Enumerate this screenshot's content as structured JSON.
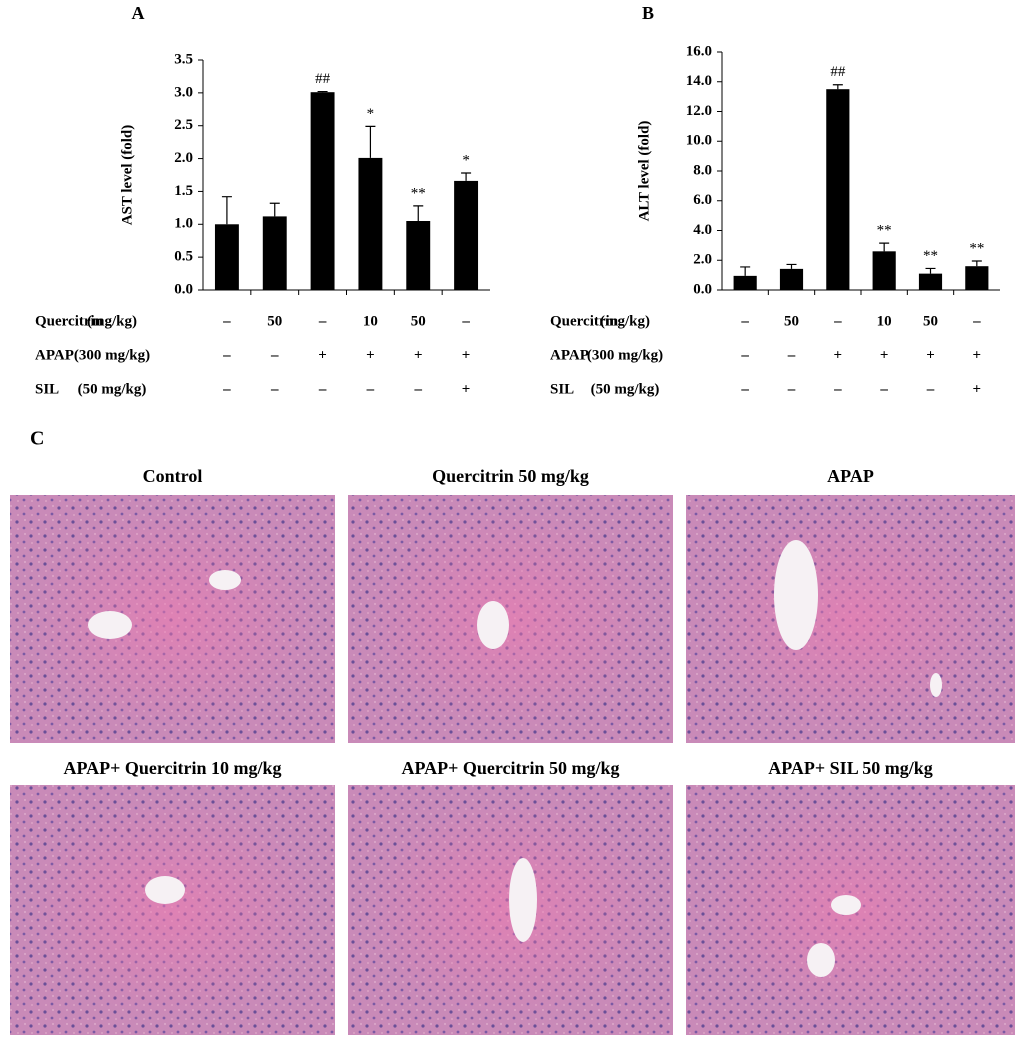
{
  "chart_data": [
    {
      "type": "bar",
      "title": "A",
      "y_label": "AST level  (fold)",
      "categories": [
        null,
        null,
        null,
        null,
        null,
        null
      ],
      "values": [
        1.0,
        1.12,
        3.01,
        2.01,
        1.05,
        1.66
      ],
      "errors": [
        0.42,
        0.2,
        0.01,
        0.48,
        0.23,
        0.12
      ],
      "value_annotations": [
        null,
        null,
        "##",
        "*",
        "**",
        "*"
      ],
      "color": "#000000",
      "ylim": [
        0,
        3.5
      ],
      "yticks": [
        {
          "value": 0,
          "label": "0.0"
        },
        0.5,
        {
          "value": 1,
          "label": "1.0"
        },
        1.5,
        {
          "value": 2,
          "label": "2.0"
        },
        2.5,
        {
          "value": 3,
          "label": "3.0"
        },
        3.5
      ],
      "treatments": [
        {
          "label": "Quercitrin",
          "unit": "(mg/kg)",
          "cells": [
            "–",
            "50",
            "–",
            "10",
            "50",
            "–"
          ]
        },
        {
          "label": "APAP",
          "unit": "(300 mg/kg)",
          "cells": [
            "–",
            "–",
            "+",
            "+",
            "+",
            "+"
          ]
        },
        {
          "label": "SIL",
          "unit": "(50 mg/kg)",
          "cells": [
            "–",
            "–",
            "–",
            "–",
            "–",
            "+"
          ]
        }
      ]
    },
    {
      "type": "bar",
      "title": "B",
      "y_label": "ALT level  (fold)",
      "categories": [
        null,
        null,
        null,
        null,
        null,
        null
      ],
      "values": [
        0.95,
        1.42,
        13.5,
        2.6,
        1.1,
        1.6
      ],
      "errors": [
        0.6,
        0.3,
        0.3,
        0.55,
        0.35,
        0.35
      ],
      "value_annotations": [
        null,
        null,
        "##",
        "**",
        "**",
        "**"
      ],
      "color": "#000000",
      "ylim": [
        0,
        16
      ],
      "yticks": [
        {
          "value": 0,
          "label": "0.0"
        },
        {
          "value": 2,
          "label": "2.0"
        },
        {
          "value": 4,
          "label": "4.0"
        },
        {
          "value": 6,
          "label": "6.0"
        },
        {
          "value": 8,
          "label": "8.0"
        },
        {
          "value": 10,
          "label": "10.0"
        },
        {
          "value": 12,
          "label": "12.0"
        },
        {
          "value": 14,
          "label": "14.0"
        },
        {
          "value": 16,
          "label": "16.0"
        }
      ],
      "treatments": [
        {
          "label": "Quercitrin",
          "unit": "(mg/kg)",
          "cells": [
            "–",
            "50",
            "–",
            "10",
            "50",
            "–"
          ]
        },
        {
          "label": "APAP",
          "unit": "(300 mg/kg)",
          "cells": [
            "–",
            "–",
            "+",
            "+",
            "+",
            "+"
          ]
        },
        {
          "label": "SIL",
          "unit": "(50 mg/kg)",
          "cells": [
            "–",
            "–",
            "–",
            "–",
            "–",
            "+"
          ]
        }
      ]
    }
  ],
  "panel_c": {
    "label": "C",
    "images": [
      {
        "title": "Control"
      },
      {
        "title": "Quercitrin 50 mg/kg"
      },
      {
        "title": "APAP"
      },
      {
        "title": "APAP+ Quercitrin 10 mg/kg"
      },
      {
        "title": "APAP+ Quercitrin 50 mg/kg"
      },
      {
        "title": "APAP+ SIL 50 mg/kg"
      }
    ]
  }
}
